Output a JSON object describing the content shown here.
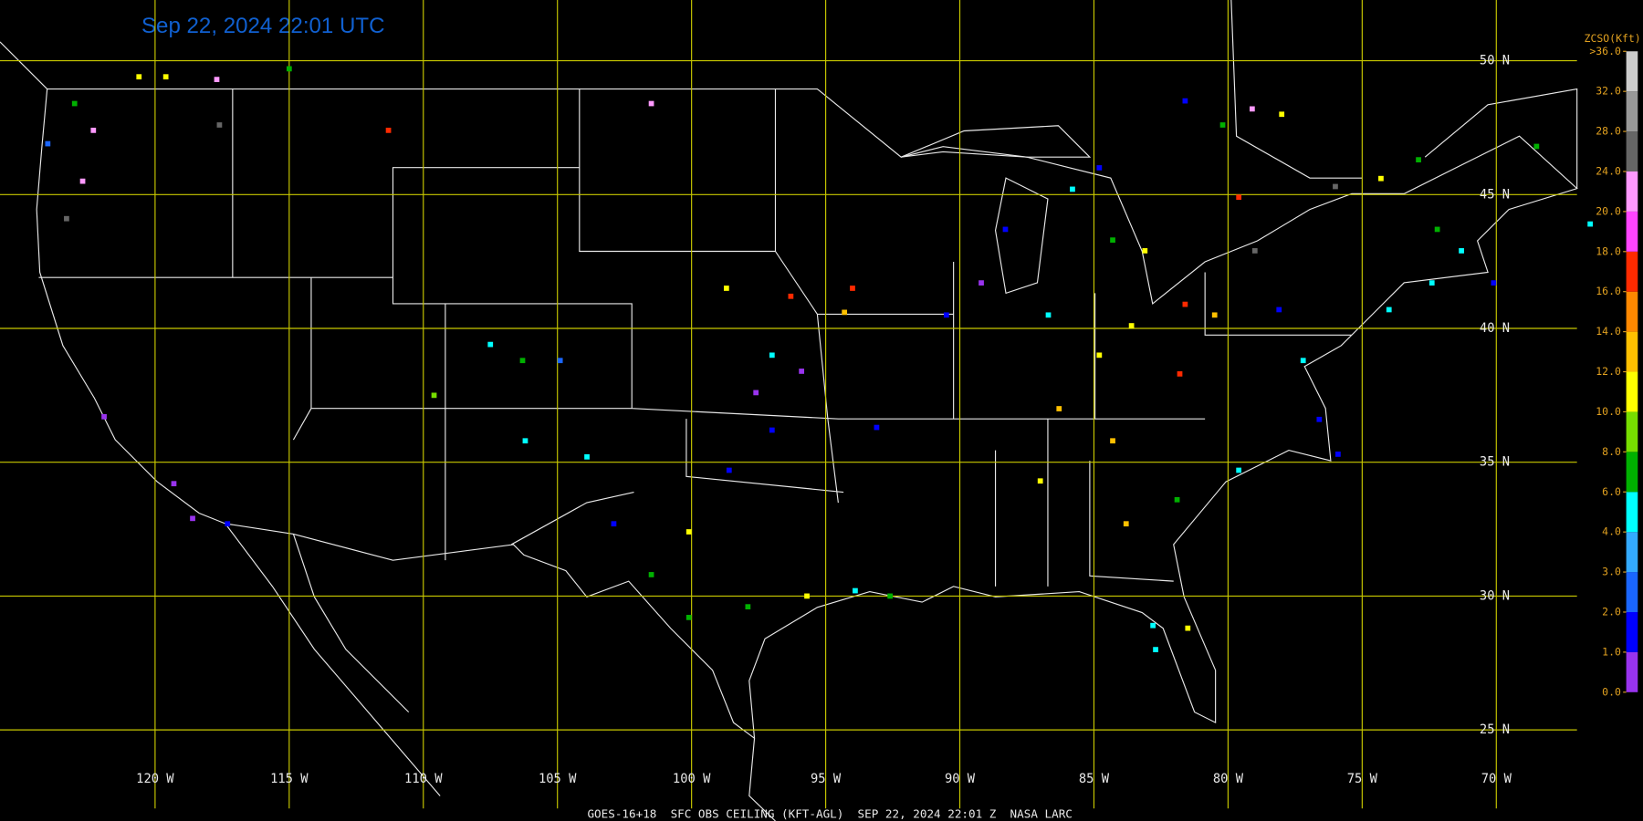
{
  "title": "Sep 22, 2024 22:01 UTC",
  "footer": "GOES-16+18  SFC OBS CEILING (KFT-AGL)  SEP 22, 2024 22:01 Z  NASA LARC",
  "latitudes": [
    {
      "value": 50,
      "label": "50 N"
    },
    {
      "value": 45,
      "label": "45 N"
    },
    {
      "value": 40,
      "label": "40 N"
    },
    {
      "value": 35,
      "label": "35 N"
    },
    {
      "value": 30,
      "label": "30 N"
    },
    {
      "value": 25,
      "label": "25 N"
    }
  ],
  "longitudes": [
    {
      "value": -120,
      "label": "120 W"
    },
    {
      "value": -115,
      "label": "115 W"
    },
    {
      "value": -110,
      "label": "110 W"
    },
    {
      "value": -105,
      "label": "105 W"
    },
    {
      "value": -100,
      "label": "100 W"
    },
    {
      "value": -95,
      "label": "95 W"
    },
    {
      "value": -90,
      "label": "90 W"
    },
    {
      "value": -85,
      "label": "85 W"
    },
    {
      "value": -80,
      "label": "80 W"
    },
    {
      "value": -75,
      "label": "75 W"
    },
    {
      "value": -70,
      "label": "70 W"
    }
  ],
  "colorbar": {
    "title": "ZCSO(Kft)",
    "levels": [
      {
        "value": 0,
        "label": "0.0"
      },
      {
        "value": 1,
        "label": "1.0"
      },
      {
        "value": 2,
        "label": "2.0"
      },
      {
        "value": 3,
        "label": "3.0"
      },
      {
        "value": 4,
        "label": "4.0"
      },
      {
        "value": 6,
        "label": "6.0"
      },
      {
        "value": 8,
        "label": "8.0"
      },
      {
        "value": 10,
        "label": "10.0"
      },
      {
        "value": 12,
        "label": "12.0"
      },
      {
        "value": 14,
        "label": "14.0"
      },
      {
        "value": 16,
        "label": "16.0"
      },
      {
        "value": 18,
        "label": "18.0"
      },
      {
        "value": 20,
        "label": "20.0"
      },
      {
        "value": 24,
        "label": "24.0"
      },
      {
        "value": 28,
        "label": "28.0"
      },
      {
        "value": 32,
        "label": "32.0"
      },
      {
        "value": 36,
        "label": ">36.0"
      }
    ],
    "colors": [
      "#9933ee",
      "#0000ff",
      "#1a66ff",
      "#33aaff",
      "#00ffff",
      "#00b000",
      "#77dd00",
      "#ffff00",
      "#ffc000",
      "#ff8800",
      "#ff2a00",
      "#ff44ff",
      "#ff99ff",
      "#666666",
      "#999999",
      "#cccccc"
    ]
  },
  "stations": {
    "lon": [
      -120.6,
      -119.6,
      -117.7,
      -115.0,
      -111.3,
      -117.6,
      -101.5,
      -123.3,
      -122.7,
      -122.3,
      -123.0,
      -124.0,
      -121.9,
      -119.3,
      -118.6,
      -117.3,
      -109.6,
      -107.5,
      -106.3,
      -104.9,
      -106.2,
      -103.9,
      -102.9,
      -101.5,
      -100.1,
      -98.6,
      -97.6,
      -97.0,
      -98.7,
      -97.0,
      -95.9,
      -94.3,
      -94.0,
      -96.3,
      -93.1,
      -93.9,
      -92.6,
      -95.7,
      -97.9,
      -100.1,
      -90.5,
      -89.2,
      -88.3,
      -86.7,
      -85.8,
      -84.8,
      -84.3,
      -83.1,
      -81.6,
      -81.8,
      -83.6,
      -84.8,
      -86.3,
      -84.3,
      -87.0,
      -83.8,
      -81.9,
      -82.8,
      -81.5,
      -82.7,
      -79.6,
      -79.0,
      -80.5,
      -78.1,
      -77.2,
      -76.6,
      -75.9,
      -79.6,
      -74.0,
      -72.4,
      -71.3,
      -70.1,
      -72.2,
      -68.5,
      -66.5,
      -81.6,
      -79.1,
      -78.0,
      -80.2,
      -76.0,
      -72.9,
      -74.3
    ],
    "lat": [
      49.4,
      49.4,
      49.3,
      49.7,
      47.4,
      47.6,
      48.4,
      44.1,
      45.5,
      47.4,
      48.4,
      46.9,
      36.7,
      34.2,
      32.9,
      32.7,
      37.5,
      39.4,
      38.8,
      38.8,
      35.8,
      35.2,
      32.7,
      30.8,
      32.4,
      34.7,
      37.6,
      36.2,
      41.5,
      39.0,
      38.4,
      40.6,
      41.5,
      41.2,
      36.3,
      30.2,
      30.0,
      30.0,
      29.6,
      29.2,
      40.5,
      41.7,
      43.7,
      40.5,
      45.2,
      46.0,
      43.3,
      42.9,
      40.9,
      38.3,
      40.1,
      39.0,
      37.0,
      35.8,
      34.3,
      32.7,
      33.6,
      28.9,
      28.8,
      28.0,
      44.9,
      42.9,
      40.5,
      40.7,
      38.8,
      36.6,
      35.3,
      34.7,
      40.7,
      41.7,
      42.9,
      41.7,
      43.7,
      46.8,
      43.9,
      48.5,
      48.2,
      48.0,
      47.6,
      45.3,
      46.3,
      45.6
    ],
    "values": [
      11,
      11,
      22,
      7,
      17,
      26,
      22,
      26,
      22,
      22,
      7,
      2.5,
      0.5,
      0.5,
      0.5,
      1.5,
      9,
      5,
      7,
      2.5,
      5,
      5,
      1.5,
      7,
      11,
      1.5,
      0.5,
      1.5,
      11,
      5,
      0.5,
      13,
      17,
      17,
      1.5,
      5,
      7,
      11,
      7,
      7,
      1.5,
      0.5,
      1.5,
      5,
      5,
      1.5,
      7,
      11,
      17,
      17,
      11,
      11,
      13,
      13,
      11,
      13,
      7,
      5,
      11,
      5,
      17,
      26,
      13,
      1.5,
      5,
      1.5,
      1.5,
      5,
      5,
      5,
      5,
      1.5,
      7,
      7,
      5,
      1.5,
      22,
      11,
      7,
      26,
      7,
      11
    ]
  }
}
